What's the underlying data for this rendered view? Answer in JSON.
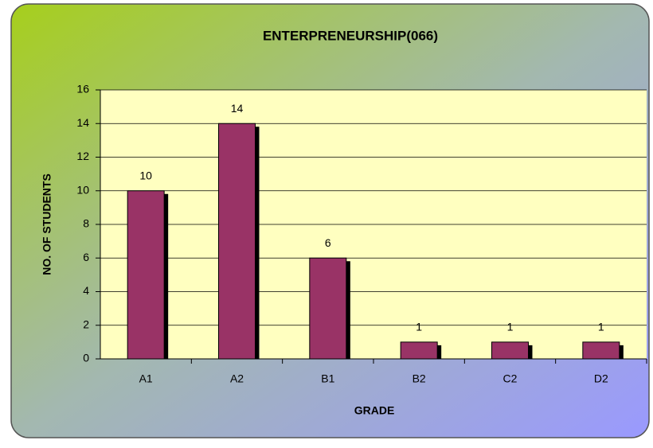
{
  "chart_data": {
    "type": "bar",
    "title": "ENTERPRENEURSHIP(066)",
    "x_label": "GRADE",
    "y_label": "NO. OF STUDENTS",
    "categories": [
      "A1",
      "A2",
      "B1",
      "B2",
      "C2",
      "D2"
    ],
    "values": [
      10,
      14,
      6,
      1,
      1,
      1
    ],
    "color": "#993366",
    "ylim": [
      0,
      16
    ],
    "yticks": [
      0,
      2,
      4,
      6,
      8,
      10,
      12,
      14,
      16
    ],
    "grid": true
  }
}
